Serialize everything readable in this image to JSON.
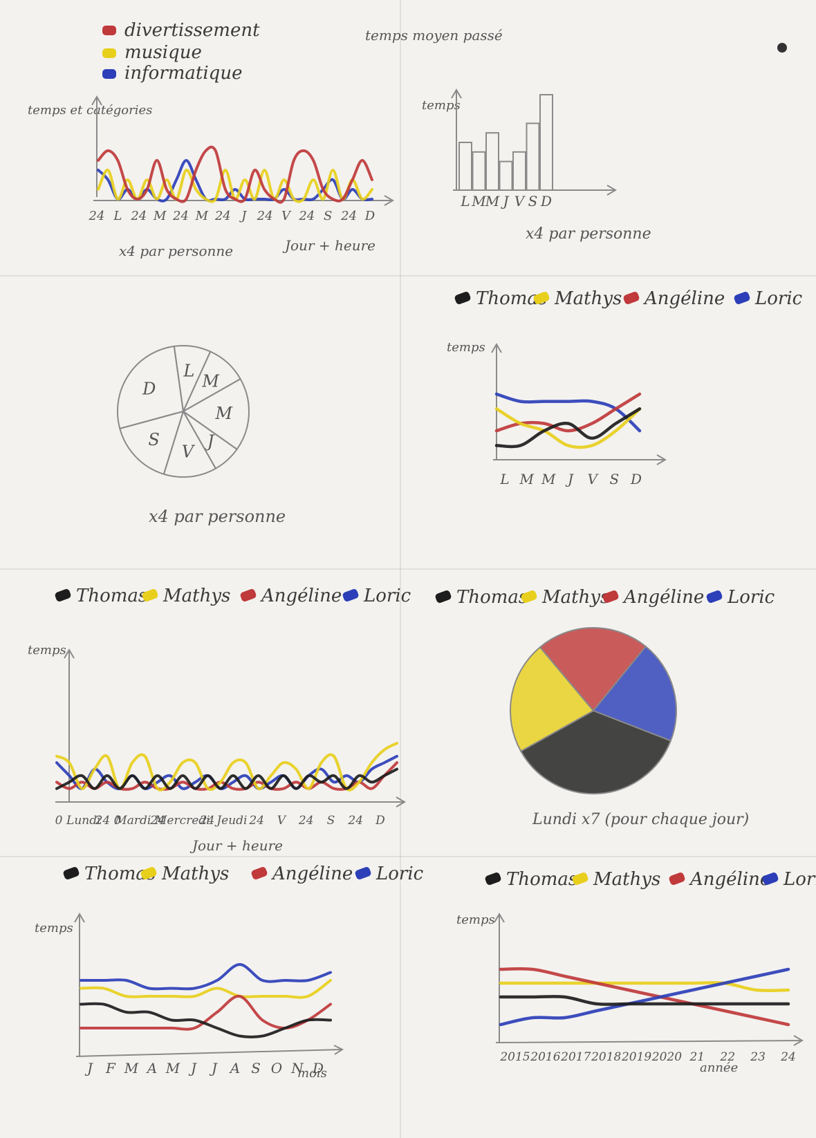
{
  "colors": {
    "red": "#c0393b",
    "yellow": "#e8cf1c",
    "blue": "#2c3fb8",
    "black": "#1d1d1d",
    "pencil": "#8a8a8a"
  },
  "header": {
    "note": "temps moyen passé"
  },
  "chart_data": [
    {
      "id": "hourly-category",
      "type": "line",
      "legend": {
        "placement": "top-left",
        "items": [
          "divertissement",
          "musique",
          "informatique"
        ]
      },
      "ylabel": "temps et catégories",
      "xlabel": "Jour + heure",
      "tick_labels": [
        "24",
        "L",
        "24",
        "M",
        "24",
        "M",
        "24",
        "J",
        "24",
        "V",
        "24",
        "S",
        "24",
        "D"
      ],
      "note": "x4 par personne",
      "x": [
        0,
        1,
        2,
        3,
        4,
        5,
        6,
        7,
        8,
        9,
        10,
        11,
        12,
        13,
        14,
        15,
        16,
        17,
        18,
        19,
        20,
        21,
        22,
        23,
        24,
        25,
        26,
        27,
        28
      ],
      "series": [
        {
          "name": "divertissement",
          "values": [
            4,
            5,
            4,
            1,
            0,
            1,
            4,
            1,
            0,
            0,
            3,
            5,
            5,
            1,
            0,
            0,
            3,
            1,
            0,
            0,
            4,
            5,
            4,
            1,
            0,
            0,
            2,
            4,
            2
          ]
        },
        {
          "name": "musique",
          "values": [
            1,
            3,
            0,
            2,
            0,
            2,
            0,
            2,
            0,
            3,
            1,
            0,
            0,
            3,
            0,
            2,
            0,
            3,
            0,
            2,
            0,
            0,
            2,
            0,
            3,
            0,
            2,
            0,
            1
          ]
        },
        {
          "name": "informatique",
          "values": [
            3,
            2,
            0,
            1,
            0,
            1,
            0,
            0,
            2,
            4,
            2,
            0,
            0,
            0,
            1,
            0,
            0,
            0,
            0,
            1,
            0,
            0,
            0,
            1,
            2,
            0,
            1,
            0,
            0
          ]
        }
      ]
    },
    {
      "id": "weekday-bars",
      "type": "bar",
      "ylabel": "temps",
      "categories": [
        "L",
        "M",
        "M",
        "J",
        "V",
        "S",
        "D"
      ],
      "values": [
        5,
        4,
        6,
        3,
        4,
        7,
        10
      ],
      "note": "x4 par personne"
    },
    {
      "id": "weekday-pie",
      "type": "pie",
      "categories": [
        "L",
        "M",
        "M",
        "J",
        "V",
        "S",
        "D"
      ],
      "values": [
        9,
        10,
        18,
        7,
        13,
        16,
        27
      ],
      "note": "x4 par personne"
    },
    {
      "id": "weekday-people-lines",
      "type": "line",
      "legend": {
        "placement": "top",
        "items": [
          "Thomas",
          "Mathys",
          "Angéline",
          "Loric"
        ]
      },
      "ylabel": "temps",
      "categories": [
        "L",
        "M",
        "M",
        "J",
        "V",
        "S",
        "D"
      ],
      "series": [
        {
          "name": "Thomas",
          "values": [
            1,
            1,
            3,
            4,
            2,
            4,
            6
          ]
        },
        {
          "name": "Mathys",
          "values": [
            6,
            4,
            3,
            1,
            1,
            3,
            6
          ]
        },
        {
          "name": "Angéline",
          "values": [
            3,
            4,
            4,
            3,
            4,
            6,
            8
          ]
        },
        {
          "name": "Loric",
          "values": [
            8,
            7,
            7,
            7,
            7,
            6,
            3
          ]
        }
      ]
    },
    {
      "id": "hourly-people-lines",
      "type": "line",
      "legend": {
        "placement": "top",
        "items": [
          "Thomas",
          "Mathys",
          "Angéline",
          "Loric"
        ]
      },
      "ylabel": "temps",
      "xlabel": "Jour + heure",
      "tick_labels": [
        "0",
        "Lundi",
        "24 0",
        "Mardi",
        "24",
        "Mercredi",
        "24",
        "Jeudi",
        "24",
        "V",
        "24",
        "S",
        "24",
        "D"
      ],
      "x": [
        0,
        1,
        2,
        3,
        4,
        5,
        6,
        7,
        8,
        9,
        10,
        11,
        12,
        13,
        14,
        15,
        16,
        17,
        18,
        19,
        20,
        21,
        22,
        23,
        24,
        25,
        26,
        27
      ],
      "series": [
        {
          "name": "Thomas",
          "values": [
            1,
            2,
            3,
            1,
            3,
            1,
            3,
            1,
            3,
            1,
            3,
            1,
            3,
            1,
            3,
            1,
            3,
            1,
            3,
            1,
            3,
            2,
            3,
            1,
            3,
            2,
            3,
            4
          ]
        },
        {
          "name": "Mathys",
          "values": [
            6,
            5,
            1,
            4,
            6,
            1,
            5,
            6,
            1,
            2,
            5,
            5,
            1,
            2,
            5,
            5,
            1,
            3,
            5,
            4,
            1,
            5,
            6,
            1,
            2,
            5,
            7,
            8
          ]
        },
        {
          "name": "Angéline",
          "values": [
            2,
            1,
            2,
            1,
            2,
            1,
            1,
            2,
            1,
            1,
            2,
            1,
            1,
            2,
            1,
            1,
            2,
            1,
            1,
            2,
            1,
            2,
            1,
            1,
            2,
            1,
            3,
            5
          ]
        },
        {
          "name": "Loric",
          "values": [
            5,
            3,
            1,
            4,
            2,
            1,
            3,
            1,
            2,
            3,
            1,
            2,
            3,
            1,
            2,
            3,
            1,
            2,
            3,
            1,
            3,
            4,
            2,
            3,
            2,
            4,
            5,
            6
          ]
        }
      ]
    },
    {
      "id": "monday-people-pie",
      "type": "pie",
      "legend": {
        "placement": "top",
        "items": [
          "Thomas",
          "Mathys",
          "Angéline",
          "Loric"
        ]
      },
      "categories": [
        "Angéline",
        "Loric",
        "Thomas",
        "Mathys"
      ],
      "values": [
        22,
        20,
        36,
        22
      ],
      "note": "Lundi x7 (pour chaque jour)"
    },
    {
      "id": "monthly-people-lines",
      "type": "line",
      "legend": {
        "placement": "top",
        "items": [
          "Thomas",
          "Mathys",
          "Angéline",
          "Loric"
        ]
      },
      "ylabel": "temps",
      "xlabel": "mois",
      "categories": [
        "J",
        "F",
        "M",
        "A",
        "M",
        "J",
        "J",
        "A",
        "S",
        "O",
        "N",
        "D"
      ],
      "series": [
        {
          "name": "Thomas",
          "values": [
            5,
            5,
            4,
            4,
            3,
            3,
            2,
            1,
            1,
            2,
            3,
            3
          ]
        },
        {
          "name": "Mathys",
          "values": [
            7,
            7,
            6,
            6,
            6,
            6,
            7,
            6,
            6,
            6,
            6,
            8
          ]
        },
        {
          "name": "Angéline",
          "values": [
            2,
            2,
            2,
            2,
            2,
            2,
            4,
            6,
            3,
            2,
            3,
            5
          ]
        },
        {
          "name": "Loric",
          "values": [
            8,
            8,
            8,
            7,
            7,
            7,
            8,
            10,
            8,
            8,
            8,
            9
          ]
        }
      ]
    },
    {
      "id": "yearly-people-lines",
      "type": "line",
      "legend": {
        "placement": "top",
        "items": [
          "Thomas",
          "Mathys",
          "Angéline",
          "Loric"
        ]
      },
      "ylabel": "temps",
      "xlabel": "année",
      "categories": [
        "2015",
        "2016",
        "2017",
        "2018",
        "2019",
        "2020",
        "21",
        "22",
        "23",
        "24"
      ],
      "series": [
        {
          "name": "Thomas",
          "values": [
            5,
            5,
            5,
            4,
            4,
            4,
            4,
            4,
            4,
            4
          ]
        },
        {
          "name": "Mathys",
          "values": [
            7,
            7,
            7,
            7,
            7,
            7,
            7,
            7,
            6,
            6
          ]
        },
        {
          "name": "Angéline",
          "values": [
            9,
            9,
            8,
            7,
            6,
            5,
            4,
            3,
            2,
            1
          ]
        },
        {
          "name": "Loric",
          "values": [
            1,
            2,
            2,
            3,
            4,
            5,
            6,
            7,
            8,
            9
          ]
        }
      ]
    }
  ]
}
